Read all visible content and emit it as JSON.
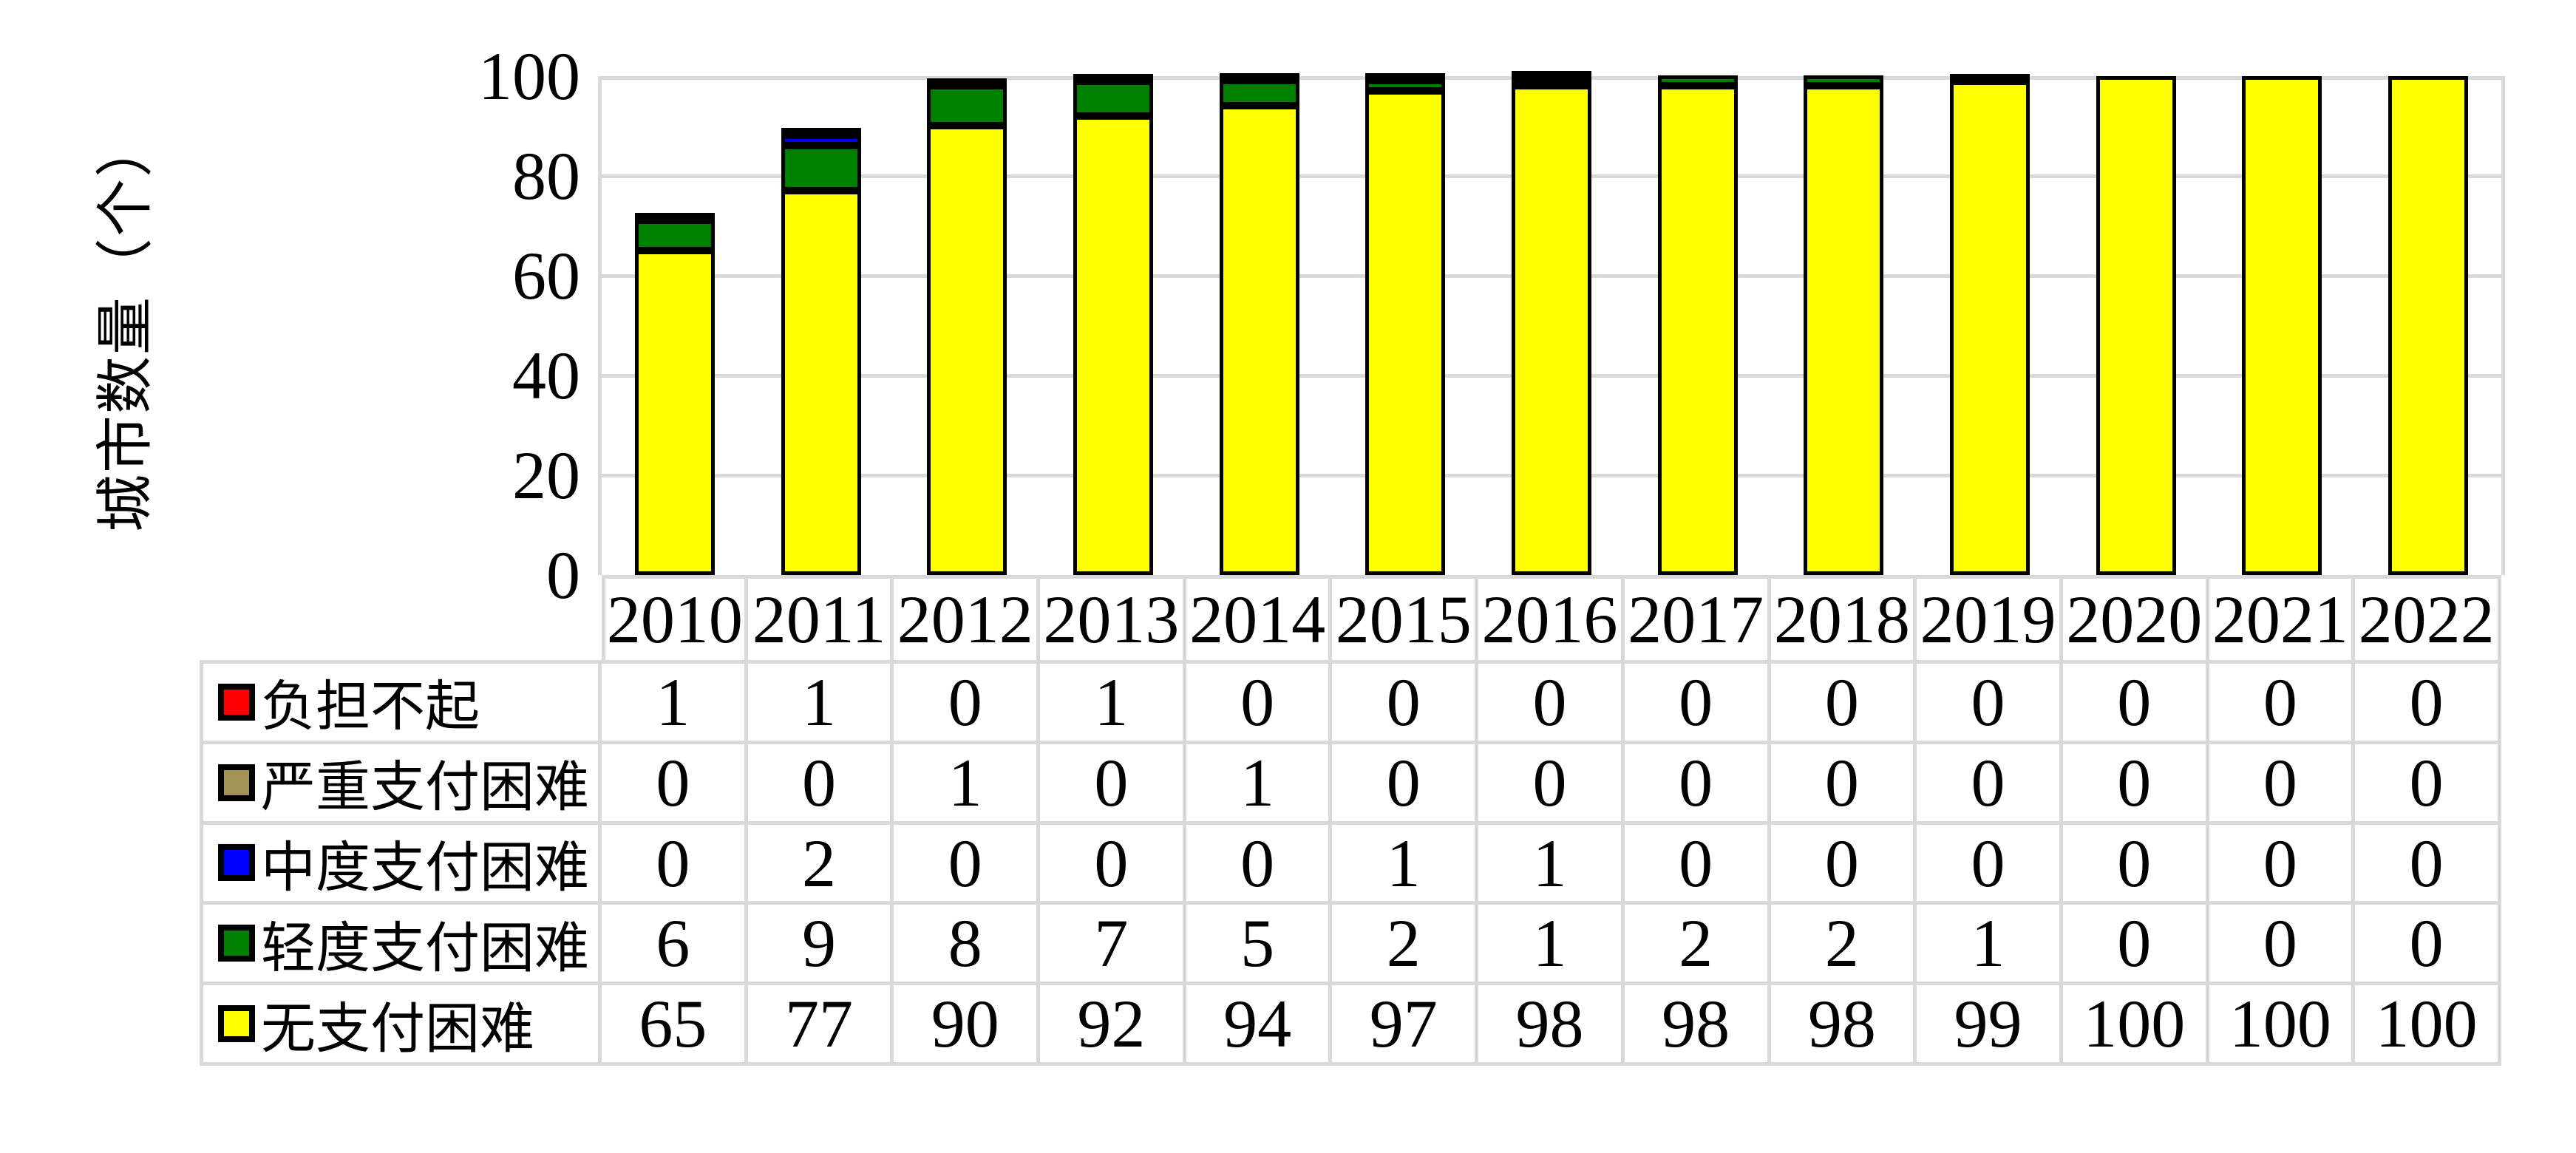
{
  "chart_data": {
    "type": "bar",
    "stacked": true,
    "title": "",
    "xlabel": "",
    "ylabel": "城市数量（个）",
    "ylim": [
      0,
      100
    ],
    "yticks": [
      0,
      20,
      40,
      60,
      80,
      100
    ],
    "grid": true,
    "legend_position": "table-left",
    "categories": [
      "2010",
      "2011",
      "2012",
      "2013",
      "2014",
      "2015",
      "2016",
      "2017",
      "2018",
      "2019",
      "2020",
      "2021",
      "2022"
    ],
    "series": [
      {
        "name": "负担不起",
        "key": "unaffordable",
        "color": "#FF0000",
        "values": [
          1,
          1,
          0,
          1,
          0,
          0,
          0,
          0,
          0,
          0,
          0,
          0,
          0
        ]
      },
      {
        "name": "严重支付困难",
        "key": "severe-difficulty",
        "color": "#A39355",
        "values": [
          0,
          0,
          1,
          0,
          1,
          0,
          0,
          0,
          0,
          0,
          0,
          0,
          0
        ]
      },
      {
        "name": "中度支付困难",
        "key": "moderate-difficulty",
        "color": "#0000FF",
        "values": [
          0,
          2,
          0,
          0,
          0,
          1,
          1,
          0,
          0,
          0,
          0,
          0,
          0
        ]
      },
      {
        "name": "轻度支付困难",
        "key": "mild-difficulty",
        "color": "#008000",
        "values": [
          6,
          9,
          8,
          7,
          5,
          2,
          1,
          2,
          2,
          1,
          0,
          0,
          0
        ]
      },
      {
        "name": "无支付困难",
        "key": "no-difficulty",
        "color": "#FFFF00",
        "values": [
          65,
          77,
          90,
          92,
          94,
          97,
          98,
          98,
          98,
          99,
          100,
          100,
          100
        ]
      }
    ],
    "stack_order_bottom_to_top": [
      "无支付困难",
      "轻度支付困难",
      "中度支付困难",
      "严重支付困难",
      "负担不起"
    ]
  },
  "styles": {
    "grid_color": "#D9D9D9",
    "table_border_color": "#D9D9D9",
    "bar_border_color": "#000000",
    "background": "#FFFFFF",
    "text_color": "#000000"
  }
}
